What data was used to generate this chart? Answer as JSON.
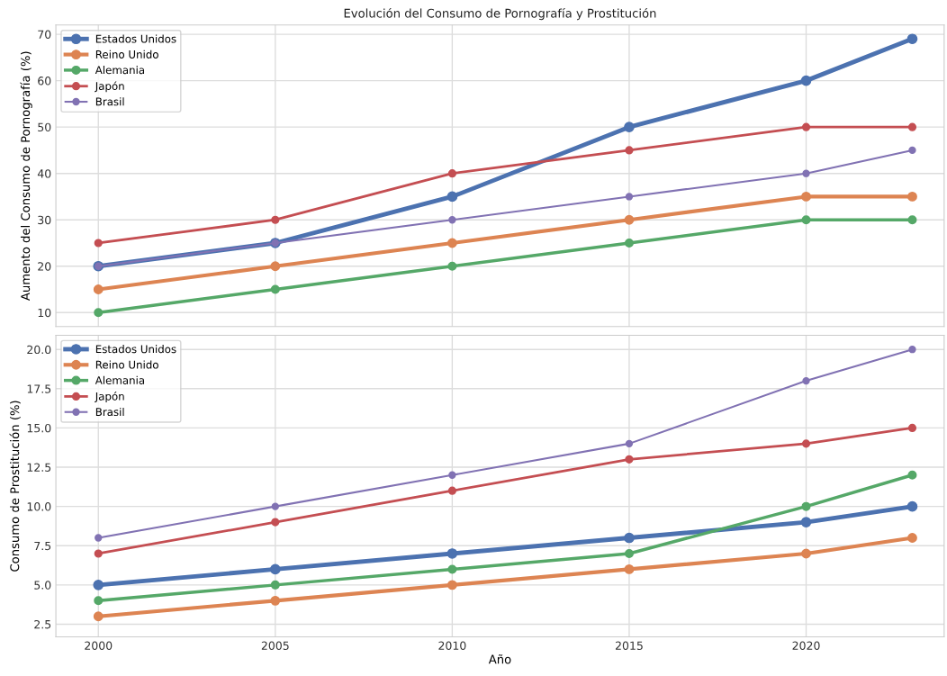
{
  "chart_data": [
    {
      "type": "line",
      "title": "Evolución del Consumo de Pornografía y Prostitución",
      "ylabel": "Aumento del Consumo de Pornografía (%)",
      "x": [
        2000,
        2005,
        2010,
        2015,
        2020,
        2023
      ],
      "series": [
        {
          "name": "Estados Unidos",
          "color": "#4c72b0",
          "values": [
            20,
            25,
            35,
            50,
            60,
            69
          ]
        },
        {
          "name": "Reino Unido",
          "color": "#dd8452",
          "values": [
            15,
            20,
            25,
            30,
            35,
            35
          ]
        },
        {
          "name": "Alemania",
          "color": "#55a868",
          "values": [
            10,
            15,
            20,
            25,
            30,
            30
          ]
        },
        {
          "name": "Japón",
          "color": "#c44e52",
          "values": [
            25,
            30,
            40,
            45,
            50,
            50
          ]
        },
        {
          "name": "Brasil",
          "color": "#8172b3",
          "values": [
            20,
            25,
            30,
            35,
            40,
            45
          ]
        }
      ],
      "xlim": [
        1998.8,
        2023.9
      ],
      "xticks": [
        2000,
        2005,
        2010,
        2015,
        2020
      ],
      "ylim": [
        7,
        72
      ],
      "yticks": [
        10,
        20,
        30,
        40,
        50,
        60,
        70
      ],
      "tick_labels": "y",
      "grid": true,
      "legend": "top left",
      "marker": "circle",
      "line_style": "solid"
    },
    {
      "type": "line",
      "xlabel": "Año",
      "ylabel": "Consumo de Prostitución (%)",
      "x": [
        2000,
        2005,
        2010,
        2015,
        2020,
        2023
      ],
      "series": [
        {
          "name": "Estados Unidos",
          "color": "#4c72b0",
          "values": [
            5,
            6,
            7,
            8,
            9,
            10
          ]
        },
        {
          "name": "Reino Unido",
          "color": "#dd8452",
          "values": [
            3,
            4,
            5,
            6,
            7,
            8
          ]
        },
        {
          "name": "Alemania",
          "color": "#55a868",
          "values": [
            4,
            5,
            6,
            7,
            10,
            12
          ]
        },
        {
          "name": "Japón",
          "color": "#c44e52",
          "values": [
            7,
            9,
            11,
            13,
            14,
            15
          ]
        },
        {
          "name": "Brasil",
          "color": "#8172b3",
          "values": [
            8,
            10,
            12,
            14,
            18,
            20
          ]
        }
      ],
      "xlim": [
        1998.8,
        2023.9
      ],
      "xticks": [
        2000,
        2005,
        2010,
        2015,
        2020
      ],
      "ylim": [
        1.7,
        20.9
      ],
      "yticks": [
        {
          "value": 2.5,
          "label": "2.5"
        },
        {
          "value": 5,
          "label": "5.0"
        },
        {
          "value": 7.5,
          "label": "7.5"
        },
        {
          "value": 10,
          "label": "10.0"
        },
        {
          "value": 12.5,
          "label": "12.5"
        },
        {
          "value": 15,
          "label": "15.0"
        },
        {
          "value": 17.5,
          "label": "17.5"
        },
        {
          "value": 20,
          "label": "20.0"
        }
      ],
      "grid": true,
      "legend": "top left",
      "marker": "circle",
      "line_style": "solid"
    }
  ]
}
